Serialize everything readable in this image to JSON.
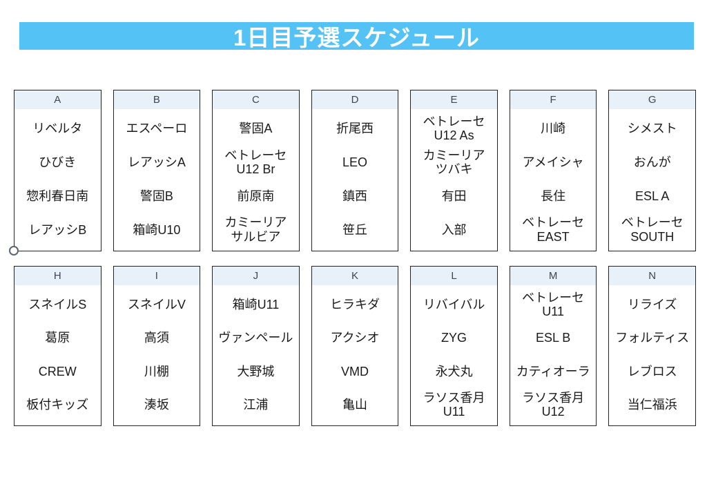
{
  "title": "1日目予選スケジュール",
  "banner": {
    "bg_color": "#54C2F5",
    "text_color": "#FFFFFF"
  },
  "colors": {
    "group_header_bg": "#E8F0FA",
    "box_border": "#222222",
    "header_text": "#3C4654",
    "team_text": "#1A1A1A"
  },
  "groups": [
    {
      "label": "A",
      "teams": [
        "リベルタ",
        "ひびき",
        "惣利春日南",
        "レアッシB"
      ]
    },
    {
      "label": "B",
      "teams": [
        "エスペーロ",
        "レアッシA",
        "警固B",
        "箱崎U10"
      ]
    },
    {
      "label": "C",
      "teams": [
        "警固A",
        "ベトレーセ\nU12 Br",
        "前原南",
        "カミーリア\nサルビア"
      ]
    },
    {
      "label": "D",
      "teams": [
        "折尾西",
        "LEO",
        "鎮西",
        "笹丘"
      ]
    },
    {
      "label": "E",
      "teams": [
        "ベトレーセ\nU12 As",
        "カミーリア\nツバキ",
        "有田",
        "入部"
      ]
    },
    {
      "label": "F",
      "teams": [
        "川崎",
        "アメイシャ",
        "長住",
        "ベトレーセ\nEAST"
      ]
    },
    {
      "label": "G",
      "teams": [
        "シメスト",
        "おんが",
        "ESL A",
        "ベトレーセ\nSOUTH"
      ]
    },
    {
      "label": "H",
      "teams": [
        "スネイルS",
        "葛原",
        "CREW",
        "板付キッズ"
      ]
    },
    {
      "label": "I",
      "teams": [
        "スネイルV",
        "高須",
        "川棚",
        "湊坂"
      ]
    },
    {
      "label": "J",
      "teams": [
        "箱崎U11",
        "ヴァンペール",
        "大野城",
        "江浦"
      ]
    },
    {
      "label": "K",
      "teams": [
        "ヒラキダ",
        "アクシオ",
        "VMD",
        "亀山"
      ]
    },
    {
      "label": "L",
      "teams": [
        "リバイバル",
        "ZYG",
        "永犬丸",
        "ラソス香月\nU11"
      ]
    },
    {
      "label": "M",
      "teams": [
        "ベトレーセ\nU11",
        "ESL B",
        "カティオーラ",
        "ラソス香月\nU12"
      ]
    },
    {
      "label": "N",
      "teams": [
        "リライズ",
        "フォルティス",
        "レブロス",
        "当仁福浜"
      ]
    }
  ]
}
